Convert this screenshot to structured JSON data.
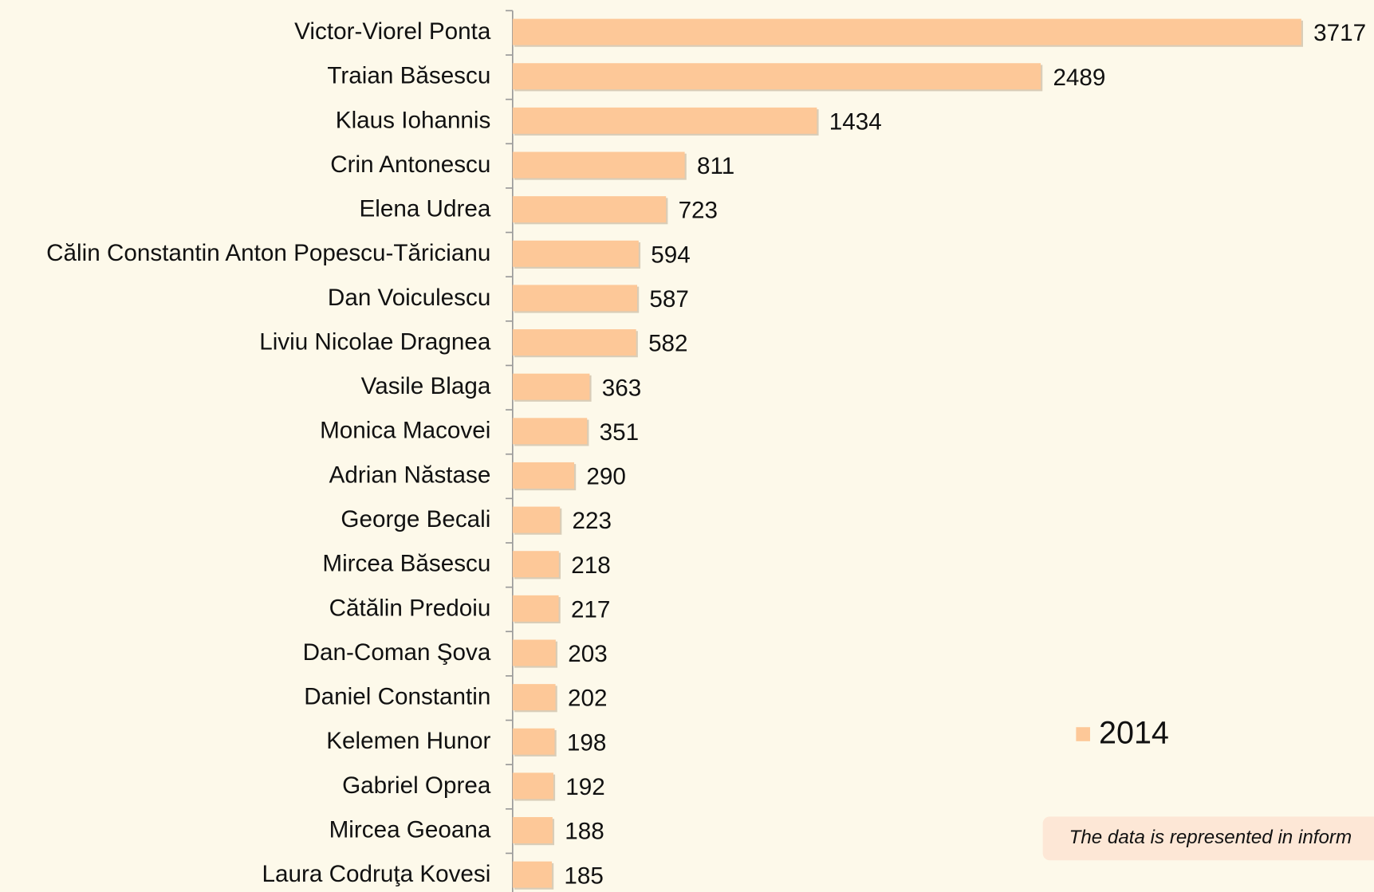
{
  "chart_data": {
    "type": "bar",
    "orientation": "horizontal",
    "categories": [
      "Victor-Viorel Ponta",
      "Traian Băsescu",
      "Klaus Iohannis",
      "Crin Antonescu",
      "Elena Udrea",
      "Călin Constantin Anton Popescu-Tăricianu",
      "Dan Voiculescu",
      "Liviu Nicolae Dragnea",
      "Vasile Blaga",
      "Monica Macovei",
      "Adrian Năstase",
      "George Becali",
      "Mircea Băsescu",
      "Cătălin Predoiu",
      "Dan-Coman Şova",
      "Daniel Constantin",
      "Kelemen Hunor",
      "Gabriel Oprea",
      "Mircea Geoana",
      "Laura Codruţa Kovesi"
    ],
    "series": [
      {
        "name": "2014",
        "color": "#fdc898",
        "values": [
          3717,
          2489,
          1434,
          811,
          723,
          594,
          587,
          582,
          363,
          351,
          290,
          223,
          218,
          217,
          203,
          202,
          198,
          192,
          188,
          185
        ]
      }
    ],
    "legend": "right",
    "note": "The data is represented in inform"
  }
}
